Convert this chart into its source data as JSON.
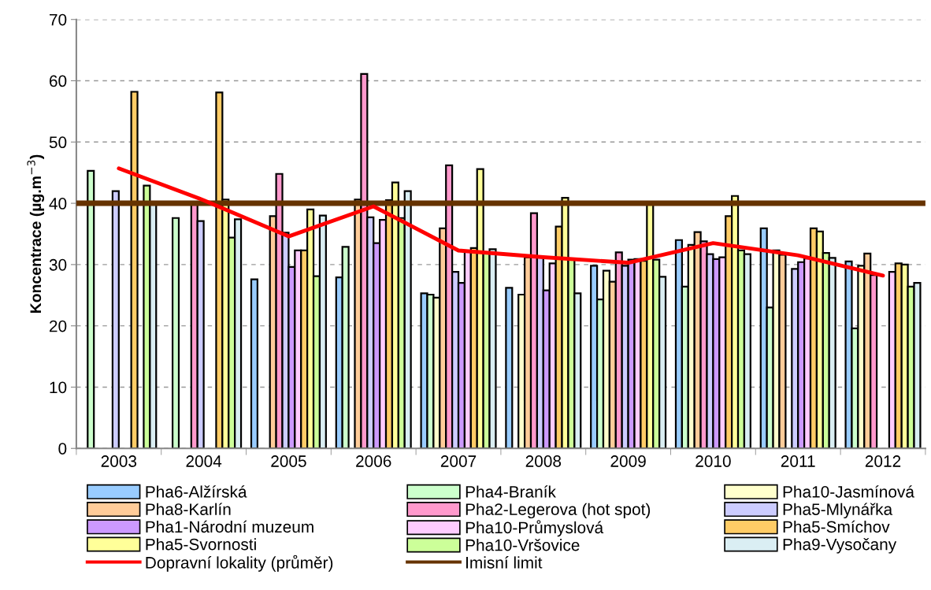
{
  "chart_data": {
    "type": "bar",
    "ylabel": "Koncentrace (µg.m$^{−3}$)",
    "categories": [
      "2003",
      "2004",
      "2005",
      "2006",
      "2007",
      "2008",
      "2009",
      "2010",
      "2011",
      "2012"
    ],
    "ylim": [
      0,
      70
    ],
    "yticks": [
      0,
      10,
      20,
      30,
      40,
      50,
      60,
      70
    ],
    "grid": "y",
    "legend": "bottom",
    "series": [
      {
        "name": "Pha6-Alžírská",
        "color": "#99ccff",
        "values": [
          null,
          null,
          27.6,
          27.9,
          25.3,
          26.2,
          29.8,
          34.0,
          35.9,
          30.5
        ]
      },
      {
        "name": "Pha4-Braník",
        "color": "#ccffcc",
        "values": [
          45.3,
          37.6,
          null,
          32.9,
          25.1,
          null,
          24.3,
          26.4,
          23.0,
          19.6
        ]
      },
      {
        "name": "Pha10-Jasmínová",
        "color": "#ffffcc",
        "values": [
          null,
          null,
          null,
          null,
          24.6,
          25.1,
          29.0,
          33.2,
          32.3,
          29.8
        ]
      },
      {
        "name": "Pha8-Karlín",
        "color": "#ffcc99",
        "values": [
          null,
          null,
          37.9,
          40.6,
          35.9,
          31.2,
          27.2,
          35.3,
          31.6,
          31.8
        ]
      },
      {
        "name": "Pha2-Legerova (hot spot)",
        "color": "#ff99cc",
        "values": [
          null,
          40.0,
          44.8,
          61.1,
          46.2,
          38.4,
          32.0,
          33.8,
          null,
          28.3
        ]
      },
      {
        "name": "Pha5-Mlynářka",
        "color": "#ccccff",
        "values": [
          42.0,
          37.1,
          35.2,
          37.7,
          28.8,
          31.3,
          29.8,
          31.7,
          29.3,
          null
        ]
      },
      {
        "name": "Pha1-Národní muzeum",
        "color": "#cc99ff",
        "values": [
          null,
          null,
          29.6,
          33.5,
          27.0,
          25.8,
          30.8,
          30.9,
          30.4,
          null
        ]
      },
      {
        "name": "Pha10-Průmyslová",
        "color": "#ffccff",
        "values": [
          null,
          null,
          32.3,
          37.3,
          32.1,
          30.2,
          30.9,
          31.2,
          31.0,
          28.8
        ]
      },
      {
        "name": "Pha5-Smíchov",
        "color": "#ffcc66",
        "values": [
          58.2,
          58.1,
          32.3,
          40.5,
          32.7,
          36.2,
          30.6,
          37.9,
          35.9,
          30.2
        ]
      },
      {
        "name": "Pha5-Svornosti",
        "color": "#ffff99",
        "values": [
          null,
          40.6,
          39.0,
          43.4,
          45.6,
          40.9,
          40.0,
          41.2,
          35.4,
          30.0
        ]
      },
      {
        "name": "Pha10-Vršovice",
        "color": "#ccff99",
        "values": [
          42.9,
          34.4,
          28.1,
          37.6,
          32.0,
          31.0,
          30.8,
          32.3,
          31.9,
          26.4
        ]
      },
      {
        "name": "Pha9-Vysočany",
        "color": "#daeef3",
        "values": [
          39.8,
          37.4,
          38.0,
          42.0,
          32.5,
          25.3,
          28.0,
          31.7,
          31.1,
          27.0
        ]
      },
      {
        "name": "Dopravní lokality (průměr)",
        "type": "line",
        "color": "#ff0000",
        "values": [
          45.7,
          40.5,
          34.6,
          39.5,
          32.3,
          31.2,
          30.3,
          33.5,
          31.5,
          28.2
        ]
      }
    ],
    "ref_lines": [
      {
        "axis": "y",
        "value": 40,
        "label": "Imisní limit",
        "color": "#663300"
      }
    ]
  }
}
